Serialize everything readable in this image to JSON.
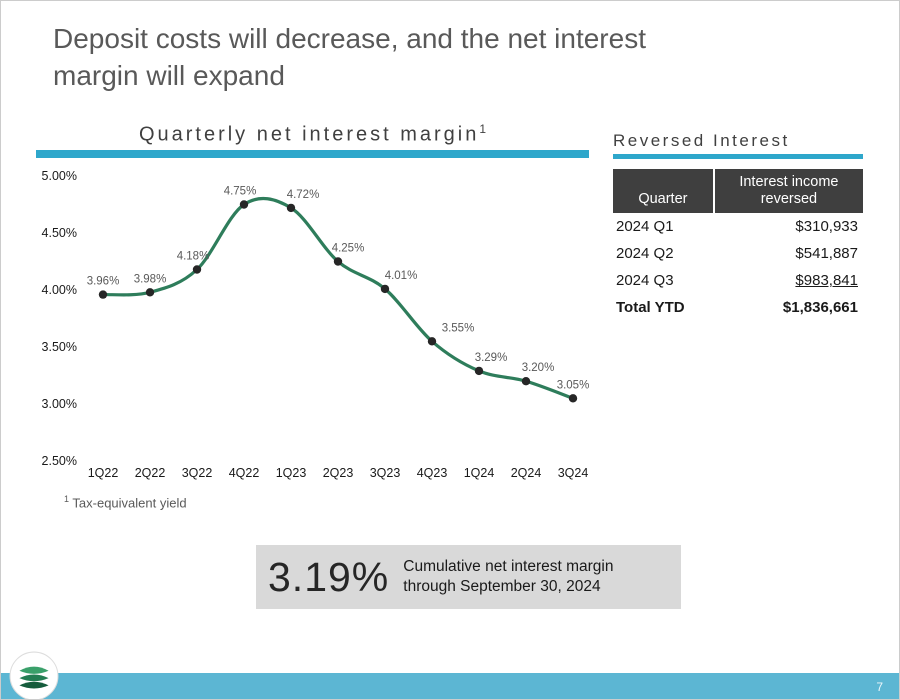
{
  "slide": {
    "title_line1": "Deposit costs will decrease, and the net interest",
    "title_line2": "margin will expand",
    "page_number": "7",
    "logo_icon": "stacked-layers-logo-icon"
  },
  "chart": {
    "title": "Quarterly net interest margin",
    "title_sup": "1",
    "footnote_sup": "1",
    "footnote_text": "Tax-equivalent yield"
  },
  "chart_data": {
    "type": "line",
    "title": "Quarterly net interest margin",
    "categories": [
      "1Q22",
      "2Q22",
      "3Q22",
      "4Q22",
      "1Q23",
      "2Q23",
      "3Q23",
      "4Q23",
      "1Q24",
      "2Q24",
      "3Q24"
    ],
    "values": [
      3.96,
      3.98,
      4.18,
      4.75,
      4.72,
      4.25,
      4.01,
      3.55,
      3.29,
      3.2,
      3.05
    ],
    "labels": [
      "3.96%",
      "3.98%",
      "4.18%",
      "4.75%",
      "4.72%",
      "4.25%",
      "4.01%",
      "3.55%",
      "3.29%",
      "3.20%",
      "3.05%"
    ],
    "xlabel": "",
    "ylabel": "",
    "ylim": [
      2.5,
      5.0
    ],
    "yticks": [
      "5.00%",
      "4.50%",
      "4.00%",
      "3.50%",
      "3.00%",
      "2.50%"
    ],
    "ytick_values": [
      5.0,
      4.5,
      4.0,
      3.5,
      3.0,
      2.5
    ],
    "grid": false,
    "legend": "none",
    "line_color": "#2e7d5b",
    "marker_color": "#262626"
  },
  "reversed_interest": {
    "title": "Reversed Interest",
    "headers": [
      "Quarter",
      "Interest income reversed"
    ],
    "rows": [
      {
        "quarter": "2024 Q1",
        "amount": "$310,933"
      },
      {
        "quarter": "2024 Q2",
        "amount": "$541,887"
      },
      {
        "quarter": "2024 Q3",
        "amount": "$983,841"
      },
      {
        "quarter": "Total YTD",
        "amount": "$1,836,661"
      }
    ]
  },
  "callout": {
    "value": "3.19%",
    "line1": "Cumulative net interest margin",
    "line2": "through September 30, 2024"
  },
  "colors": {
    "accent_bar": "#2ea7cb",
    "footer_band": "#5cb6d3",
    "line_green": "#2e7d5b",
    "table_header_bg": "#3f3f3f",
    "callout_bg": "#d9d9d9",
    "title_gray": "#595959"
  }
}
